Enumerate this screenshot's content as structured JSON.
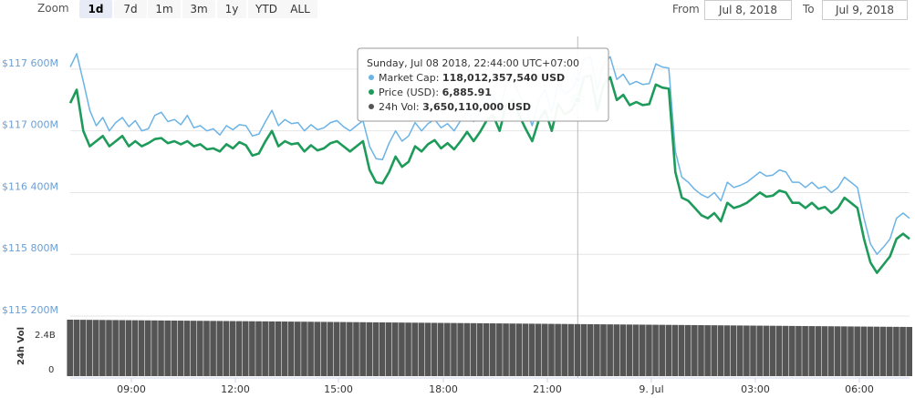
{
  "toolbar": {
    "zoom_label": "Zoom",
    "zoom_buttons": [
      "1d",
      "7d",
      "1m",
      "3m",
      "1y",
      "YTD",
      "ALL"
    ],
    "active_zoom": "1d",
    "from_label": "From",
    "from_value": "Jul 8, 2018",
    "to_label": "To",
    "to_value": "Jul 9, 2018"
  },
  "colors": {
    "market_cap": "#6cb3e6",
    "price": "#1e9b5a",
    "volume": "#555555",
    "axis_text": "#6b9fd4"
  },
  "tooltip": {
    "title": "Sunday, Jul 08 2018, 22:44:00 UTC+07:00",
    "rows": [
      {
        "label": "Market Cap:",
        "value": "118,012,357,540 USD",
        "color": "#6cb3e6"
      },
      {
        "label": "Price (USD):",
        "value": "6,885.91",
        "color": "#1e9b5a"
      },
      {
        "label": "24h Vol:",
        "value": "3,650,110,000 USD",
        "color": "#555555"
      }
    ]
  },
  "chart_data": {
    "type": "line",
    "x_ticks": [
      "09:00",
      "12:00",
      "15:00",
      "18:00",
      "21:00",
      "9. Jul",
      "03:00",
      "06:00"
    ],
    "y_ticks": [
      "$117 600M",
      "$117 000M",
      "$116 400M",
      "$115 800M",
      "$115 200M"
    ],
    "y_values": [
      117600,
      117000,
      116400,
      115800,
      115200
    ],
    "ylim": [
      115200,
      117900
    ],
    "volume_axis_label": "24h Vol",
    "volume_ticks": [
      "2.4B",
      "0"
    ],
    "series": [
      {
        "name": "Market Cap",
        "color": "#6cb3e6",
        "values": [
          117620,
          117750,
          117480,
          117200,
          117050,
          117130,
          117000,
          117080,
          117130,
          117040,
          117100,
          117000,
          117020,
          117150,
          117180,
          117090,
          117110,
          117060,
          117150,
          117030,
          117050,
          117000,
          117020,
          116960,
          117050,
          117010,
          117060,
          117050,
          116950,
          116970,
          117090,
          117200,
          117050,
          117110,
          117070,
          117080,
          117000,
          117060,
          117010,
          117030,
          117080,
          117100,
          117040,
          117000,
          117050,
          117100,
          116850,
          116730,
          116720,
          116880,
          117000,
          116900,
          116950,
          117080,
          117000,
          117070,
          117110,
          117030,
          117070,
          117000,
          117100,
          117180,
          117090,
          117180,
          117300,
          117350,
          117200,
          117450,
          117500,
          117350,
          117230,
          117050,
          117300,
          117400,
          117180,
          117460,
          117360,
          117400,
          117500,
          117700,
          117720,
          117400,
          117650,
          117720,
          117500,
          117550,
          117450,
          117480,
          117450,
          117460,
          117650,
          117620,
          117610,
          116800,
          116550,
          116500,
          116430,
          116380,
          116350,
          116400,
          116320,
          116500,
          116450,
          116470,
          116500,
          116550,
          116600,
          116560,
          116570,
          116620,
          116600,
          116500,
          116500,
          116450,
          116500,
          116440,
          116460,
          116400,
          116450,
          116550,
          116500,
          116450,
          116150,
          115900,
          115800,
          115870,
          115950,
          116150,
          116200,
          116150
        ]
      },
      {
        "name": "Price (USD)",
        "color": "#1e9b5a",
        "values": [
          117270,
          117400,
          117000,
          116850,
          116900,
          116950,
          116850,
          116900,
          116950,
          116850,
          116900,
          116850,
          116880,
          116920,
          116930,
          116880,
          116900,
          116870,
          116900,
          116850,
          116870,
          116820,
          116830,
          116800,
          116870,
          116830,
          116890,
          116860,
          116760,
          116780,
          116900,
          117000,
          116850,
          116900,
          116870,
          116880,
          116800,
          116860,
          116810,
          116830,
          116880,
          116900,
          116850,
          116800,
          116850,
          116900,
          116620,
          116500,
          116490,
          116600,
          116750,
          116650,
          116700,
          116850,
          116800,
          116870,
          116910,
          116830,
          116880,
          116820,
          116900,
          116990,
          116900,
          116990,
          117100,
          117150,
          117000,
          117250,
          117300,
          117150,
          117020,
          116900,
          117100,
          117200,
          117000,
          117260,
          117160,
          117200,
          117300,
          117520,
          117540,
          117200,
          117450,
          117520,
          117300,
          117350,
          117250,
          117280,
          117250,
          117260,
          117450,
          117420,
          117410,
          116600,
          116350,
          116320,
          116250,
          116180,
          116150,
          116200,
          116120,
          116300,
          116250,
          116270,
          116300,
          116350,
          116400,
          116360,
          116370,
          116420,
          116400,
          116300,
          116300,
          116250,
          116300,
          116240,
          116260,
          116200,
          116250,
          116350,
          116300,
          116250,
          115950,
          115720,
          115620,
          115700,
          115780,
          115950,
          116000,
          115950
        ]
      }
    ],
    "crosshair_x_index": 78
  }
}
